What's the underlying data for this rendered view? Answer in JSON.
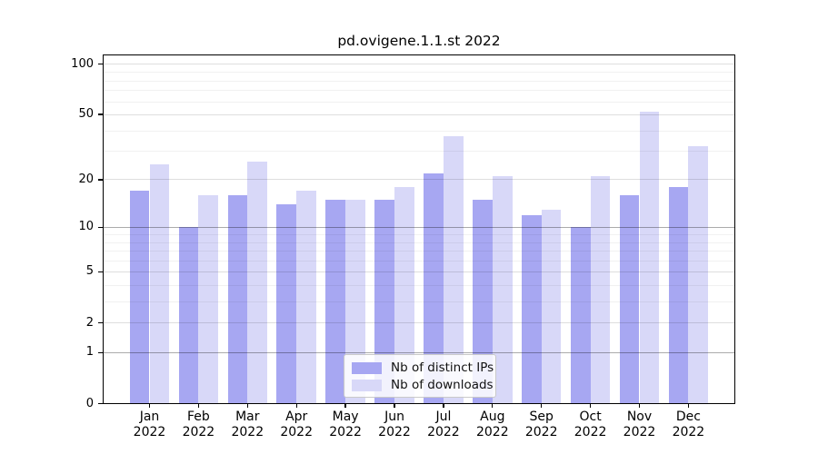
{
  "chart_data": {
    "type": "bar",
    "title": "pd.ovigene.1.1.st 2022",
    "x": {
      "months": [
        "Jan",
        "Feb",
        "Mar",
        "Apr",
        "May",
        "Jun",
        "Jul",
        "Aug",
        "Sep",
        "Oct",
        "Nov",
        "Dec"
      ],
      "year": "2022"
    },
    "series": [
      {
        "name": "Nb of distinct IPs",
        "color": "#a7a7f2",
        "values": [
          17,
          10,
          16,
          14,
          15,
          15,
          22,
          15,
          12,
          10,
          16,
          18
        ]
      },
      {
        "name": "Nb of downloads",
        "color": "#d8d8f8",
        "values": [
          25,
          16,
          26,
          17,
          15,
          18,
          37,
          21,
          13,
          21,
          52,
          32
        ]
      }
    ],
    "y_axis": {
      "scale": "log1p",
      "ticks": [
        0,
        1,
        2,
        5,
        10,
        20,
        50,
        100
      ],
      "power_gridlines": [
        1,
        10
      ],
      "minor_gridlines": [
        3,
        4,
        6,
        7,
        8,
        9,
        30,
        40,
        60,
        70,
        80,
        90
      ],
      "range": [
        0,
        100
      ]
    },
    "legend": {
      "position": "bottom-center",
      "entries": [
        "Nb of distinct IPs",
        "Nb of downloads"
      ]
    },
    "grid": "on"
  }
}
